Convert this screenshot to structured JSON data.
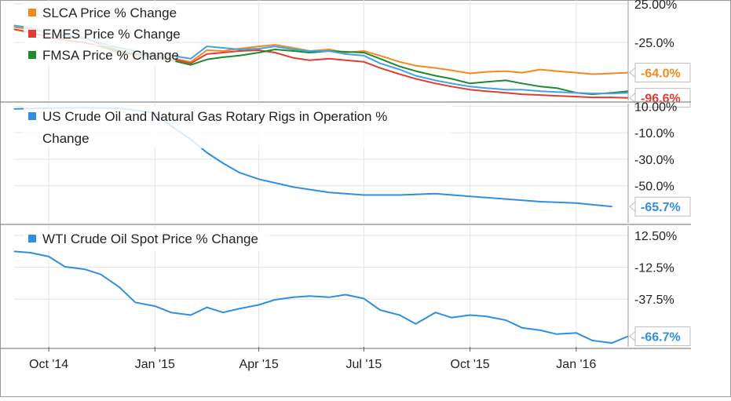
{
  "chart_data": [
    {
      "type": "line",
      "panel": "top",
      "title": "",
      "yaxis_ticks": [
        "25.00%",
        "-25.0%"
      ],
      "ylim": [
        -100,
        30
      ],
      "legend_placement": "top-left",
      "grid": true,
      "series": [
        {
          "name": "SLCA Price % Change",
          "color": "#f28b1f",
          "last_label": "-64.0%",
          "points": [
            [
              "2014-09-01",
              -5
            ],
            [
              "2014-09-15",
              -8
            ],
            [
              "2014-10-01",
              -12
            ],
            [
              "2014-10-15",
              -20
            ],
            [
              "2014-11-01",
              -18
            ],
            [
              "2014-11-15",
              -28
            ],
            [
              "2014-12-01",
              -35
            ],
            [
              "2014-12-15",
              -42
            ],
            [
              "2015-01-01",
              -38
            ],
            [
              "2015-01-15",
              -45
            ],
            [
              "2015-02-01",
              -50
            ],
            [
              "2015-02-15",
              -35
            ],
            [
              "2015-03-01",
              -36
            ],
            [
              "2015-03-15",
              -33
            ],
            [
              "2015-04-01",
              -30
            ],
            [
              "2015-04-15",
              -28
            ],
            [
              "2015-05-01",
              -32
            ],
            [
              "2015-05-15",
              -36
            ],
            [
              "2015-06-01",
              -34
            ],
            [
              "2015-06-15",
              -38
            ],
            [
              "2015-07-01",
              -36
            ],
            [
              "2015-07-15",
              -42
            ],
            [
              "2015-08-01",
              -50
            ],
            [
              "2015-08-15",
              -55
            ],
            [
              "2015-09-01",
              -58
            ],
            [
              "2015-09-15",
              -61
            ],
            [
              "2015-10-01",
              -65
            ],
            [
              "2015-10-15",
              -63
            ],
            [
              "2015-11-01",
              -62
            ],
            [
              "2015-11-15",
              -64
            ],
            [
              "2015-12-01",
              -60
            ],
            [
              "2015-12-15",
              -62
            ],
            [
              "2016-01-01",
              -64
            ],
            [
              "2016-01-15",
              -66
            ],
            [
              "2016-02-01",
              -65
            ],
            [
              "2016-02-15",
              -64
            ]
          ]
        },
        {
          "name": "EMES Price % Change",
          "color": "#e03c31",
          "last_label": "-96.6%",
          "points": [
            [
              "2014-09-01",
              -8
            ],
            [
              "2014-09-15",
              -12
            ],
            [
              "2014-10-01",
              -18
            ],
            [
              "2014-10-15",
              -22
            ],
            [
              "2014-11-01",
              -25
            ],
            [
              "2014-11-15",
              -30
            ],
            [
              "2014-12-01",
              -38
            ],
            [
              "2014-12-15",
              -40
            ],
            [
              "2015-01-01",
              -42
            ],
            [
              "2015-01-15",
              -46
            ],
            [
              "2015-02-01",
              -52
            ],
            [
              "2015-02-15",
              -40
            ],
            [
              "2015-03-01",
              -38
            ],
            [
              "2015-03-15",
              -36
            ],
            [
              "2015-04-01",
              -35
            ],
            [
              "2015-04-15",
              -38
            ],
            [
              "2015-05-01",
              -45
            ],
            [
              "2015-05-15",
              -48
            ],
            [
              "2015-06-01",
              -46
            ],
            [
              "2015-06-15",
              -48
            ],
            [
              "2015-07-01",
              -50
            ],
            [
              "2015-07-15",
              -58
            ],
            [
              "2015-08-01",
              -66
            ],
            [
              "2015-08-15",
              -72
            ],
            [
              "2015-09-01",
              -78
            ],
            [
              "2015-09-15",
              -82
            ],
            [
              "2015-10-01",
              -86
            ],
            [
              "2015-10-15",
              -88
            ],
            [
              "2015-11-01",
              -90
            ],
            [
              "2015-11-15",
              -92
            ],
            [
              "2015-12-01",
              -93
            ],
            [
              "2015-12-15",
              -94
            ],
            [
              "2016-01-01",
              -95
            ],
            [
              "2016-01-15",
              -96
            ],
            [
              "2016-02-01",
              -96
            ],
            [
              "2016-02-15",
              -96.6
            ]
          ]
        },
        {
          "name": "FMSA Price % Change",
          "color": "#1e8a2e",
          "last_label": "",
          "points": [
            [
              "2014-11-15",
              -30
            ],
            [
              "2014-12-01",
              -36
            ],
            [
              "2014-12-15",
              -40
            ],
            [
              "2015-01-01",
              -44
            ],
            [
              "2015-01-15",
              -48
            ],
            [
              "2015-02-01",
              -54
            ],
            [
              "2015-02-15",
              -47
            ],
            [
              "2015-03-01",
              -44
            ],
            [
              "2015-03-15",
              -42
            ],
            [
              "2015-04-01",
              -38
            ],
            [
              "2015-04-15",
              -34
            ],
            [
              "2015-05-01",
              -36
            ],
            [
              "2015-05-15",
              -38
            ],
            [
              "2015-06-01",
              -36
            ],
            [
              "2015-06-15",
              -37
            ],
            [
              "2015-07-01",
              -38
            ],
            [
              "2015-07-15",
              -46
            ],
            [
              "2015-08-01",
              -56
            ],
            [
              "2015-08-15",
              -62
            ],
            [
              "2015-09-01",
              -68
            ],
            [
              "2015-09-15",
              -72
            ],
            [
              "2015-10-01",
              -78
            ],
            [
              "2015-10-15",
              -76
            ],
            [
              "2015-11-01",
              -74
            ],
            [
              "2015-11-15",
              -78
            ],
            [
              "2015-12-01",
              -82
            ],
            [
              "2015-12-15",
              -84
            ],
            [
              "2016-01-01",
              -90
            ],
            [
              "2016-01-15",
              -92
            ],
            [
              "2016-02-01",
              -90
            ],
            [
              "2016-02-15",
              -88
            ]
          ]
        },
        {
          "name": "",
          "color": "#3fa2ea",
          "last_label": "",
          "points": [
            [
              "2014-09-01",
              -3
            ],
            [
              "2014-09-15",
              -6
            ],
            [
              "2014-10-01",
              -14
            ],
            [
              "2014-10-15",
              -16
            ],
            [
              "2014-11-01",
              -20
            ],
            [
              "2014-11-15",
              -26
            ],
            [
              "2014-12-01",
              -32
            ],
            [
              "2014-12-15",
              -36
            ],
            [
              "2015-01-01",
              -40
            ],
            [
              "2015-01-15",
              -42
            ],
            [
              "2015-02-01",
              -46
            ],
            [
              "2015-02-15",
              -30
            ],
            [
              "2015-03-01",
              -32
            ],
            [
              "2015-03-15",
              -34
            ],
            [
              "2015-04-01",
              -33
            ],
            [
              "2015-04-15",
              -30
            ],
            [
              "2015-05-01",
              -34
            ],
            [
              "2015-05-15",
              -36
            ],
            [
              "2015-06-01",
              -36
            ],
            [
              "2015-06-15",
              -40
            ],
            [
              "2015-07-01",
              -42
            ],
            [
              "2015-07-15",
              -52
            ],
            [
              "2015-08-01",
              -60
            ],
            [
              "2015-08-15",
              -68
            ],
            [
              "2015-09-01",
              -74
            ],
            [
              "2015-09-15",
              -78
            ],
            [
              "2015-10-01",
              -82
            ],
            [
              "2015-10-15",
              -84
            ],
            [
              "2015-11-01",
              -86
            ],
            [
              "2015-11-15",
              -86
            ],
            [
              "2015-12-01",
              -88
            ],
            [
              "2015-12-15",
              -89
            ],
            [
              "2016-01-01",
              -90
            ],
            [
              "2016-01-15",
              -91
            ],
            [
              "2016-02-01",
              -91
            ],
            [
              "2016-02-15",
              -90
            ]
          ]
        }
      ]
    },
    {
      "type": "line",
      "panel": "middle",
      "title": "",
      "yaxis_ticks": [
        "10.00%",
        "-10.0%",
        "-30.0%",
        "-50.0%"
      ],
      "ylim": [
        -78,
        12
      ],
      "legend_placement": "top-left",
      "grid": true,
      "series": [
        {
          "name": "US Crude Oil and Natural Gas Rotary Rigs in Operation % Change",
          "color": "#2f8fe0",
          "last_label": "-65.7%",
          "points": [
            [
              "2014-09-01",
              8
            ],
            [
              "2014-10-01",
              8.5
            ],
            [
              "2014-11-01",
              9
            ],
            [
              "2014-12-01",
              8.5
            ],
            [
              "2015-01-01",
              5
            ],
            [
              "2015-01-15",
              -5
            ],
            [
              "2015-02-01",
              -15
            ],
            [
              "2015-02-15",
              -25
            ],
            [
              "2015-03-01",
              -33
            ],
            [
              "2015-03-15",
              -40
            ],
            [
              "2015-04-01",
              -45
            ],
            [
              "2015-05-01",
              -51
            ],
            [
              "2015-06-01",
              -55
            ],
            [
              "2015-07-01",
              -57
            ],
            [
              "2015-08-01",
              -57
            ],
            [
              "2015-09-01",
              -56
            ],
            [
              "2015-10-01",
              -58
            ],
            [
              "2015-11-01",
              -60
            ],
            [
              "2015-12-01",
              -62
            ],
            [
              "2016-01-01",
              -63
            ],
            [
              "2016-02-01",
              -65.7
            ]
          ]
        }
      ]
    },
    {
      "type": "line",
      "panel": "bottom",
      "title": "",
      "yaxis_ticks": [
        "12.50%",
        "-12.5%",
        "-37.5%"
      ],
      "ylim": [
        -75,
        20
      ],
      "legend_placement": "top-left",
      "grid": true,
      "series": [
        {
          "name": "WTI Crude Oil Spot Price % Change",
          "color": "#2f8fe0",
          "last_label": "-66.7%",
          "points": [
            [
              "2014-09-01",
              0
            ],
            [
              "2014-09-15",
              -1
            ],
            [
              "2014-10-01",
              -4
            ],
            [
              "2014-10-15",
              -12
            ],
            [
              "2014-11-01",
              -14
            ],
            [
              "2014-11-15",
              -18
            ],
            [
              "2014-12-01",
              -28
            ],
            [
              "2014-12-15",
              -40
            ],
            [
              "2015-01-01",
              -43
            ],
            [
              "2015-01-15",
              -48
            ],
            [
              "2015-02-01",
              -50
            ],
            [
              "2015-02-15",
              -44
            ],
            [
              "2015-03-01",
              -48
            ],
            [
              "2015-03-15",
              -45
            ],
            [
              "2015-04-01",
              -42
            ],
            [
              "2015-04-15",
              -38
            ],
            [
              "2015-05-01",
              -36
            ],
            [
              "2015-05-15",
              -35
            ],
            [
              "2015-06-01",
              -36
            ],
            [
              "2015-06-15",
              -34
            ],
            [
              "2015-07-01",
              -37
            ],
            [
              "2015-07-15",
              -46
            ],
            [
              "2015-08-01",
              -50
            ],
            [
              "2015-08-15",
              -57
            ],
            [
              "2015-09-01",
              -48
            ],
            [
              "2015-09-15",
              -52
            ],
            [
              "2015-10-01",
              -50
            ],
            [
              "2015-10-15",
              -51
            ],
            [
              "2015-11-01",
              -54
            ],
            [
              "2015-11-15",
              -60
            ],
            [
              "2015-12-01",
              -62
            ],
            [
              "2015-12-15",
              -65
            ],
            [
              "2016-01-01",
              -64
            ],
            [
              "2016-01-15",
              -70
            ],
            [
              "2016-02-01",
              -72
            ],
            [
              "2016-02-15",
              -66.7
            ]
          ]
        }
      ]
    }
  ],
  "x_axis": {
    "ticks": [
      {
        "label": "Oct '14",
        "date": "2014-10-01"
      },
      {
        "label": "Jan '15",
        "date": "2015-01-01"
      },
      {
        "label": "Apr '15",
        "date": "2015-04-01"
      },
      {
        "label": "Jul '15",
        "date": "2015-07-01"
      },
      {
        "label": "Oct '15",
        "date": "2015-10-01"
      },
      {
        "label": "Jan '16",
        "date": "2016-01-01"
      }
    ],
    "range": [
      "2014-09-01",
      "2016-02-15"
    ]
  },
  "colors": {
    "grid": "#e4e4e4",
    "axis": "#555555",
    "text": "#222222"
  }
}
